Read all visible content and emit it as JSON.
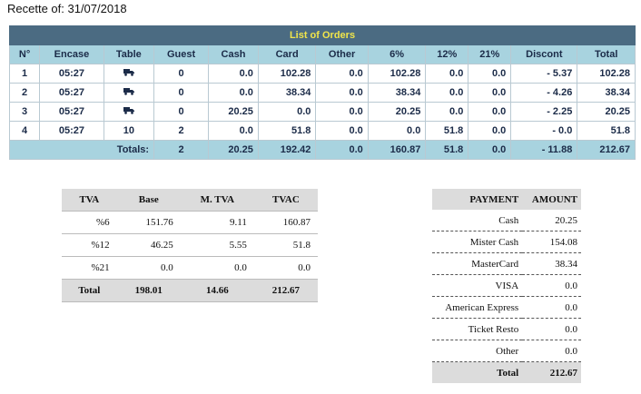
{
  "header": {
    "title": "Recette of: 31/07/2018"
  },
  "orders": {
    "title": "List of Orders",
    "columns": [
      "N°",
      "Encase",
      "Table",
      "Guest",
      "Cash",
      "Card",
      "Other",
      "6%",
      "12%",
      "21%",
      "Discont",
      "Total"
    ],
    "rows": [
      [
        "1",
        "05:27",
        null,
        "0",
        "0.0",
        "102.28",
        "0.0",
        "102.28",
        "0.0",
        "0.0",
        "- 5.37",
        "102.28"
      ],
      [
        "2",
        "05:27",
        null,
        "0",
        "0.0",
        "38.34",
        "0.0",
        "38.34",
        "0.0",
        "0.0",
        "- 4.26",
        "38.34"
      ],
      [
        "3",
        "05:27",
        null,
        "0",
        "20.25",
        "0.0",
        "0.0",
        "20.25",
        "0.0",
        "0.0",
        "- 2.25",
        "20.25"
      ],
      [
        "4",
        "05:27",
        "10",
        "2",
        "0.0",
        "51.8",
        "0.0",
        "0.0",
        "51.8",
        "0.0",
        "- 0.0",
        "51.8"
      ]
    ],
    "totals": {
      "label": "Totals:",
      "values": [
        "2",
        "20.25",
        "192.42",
        "0.0",
        "160.87",
        "51.8",
        "0.0",
        "- 11.88",
        "212.67"
      ]
    }
  },
  "tva": {
    "columns": [
      "TVA",
      "Base",
      "M. TVA",
      "TVAC"
    ],
    "rows": [
      [
        "%6",
        "151.76",
        "9.11",
        "160.87"
      ],
      [
        "%12",
        "46.25",
        "5.55",
        "51.8"
      ],
      [
        "%21",
        "0.0",
        "0.0",
        "0.0"
      ]
    ],
    "total": [
      "Total",
      "198.01",
      "14.66",
      "212.67"
    ]
  },
  "payment": {
    "columns": [
      "PAYMENT",
      "AMOUNT"
    ],
    "rows": [
      [
        "Cash",
        "20.25"
      ],
      [
        "Mister Cash",
        "154.08"
      ],
      [
        "MasterCard",
        "38.34"
      ],
      [
        "VISA",
        "0.0"
      ],
      [
        "American Express",
        "0.0"
      ],
      [
        "Ticket Resto",
        "0.0"
      ],
      [
        "Other",
        "0.0"
      ]
    ],
    "total": [
      "Total",
      "212.67"
    ]
  }
}
